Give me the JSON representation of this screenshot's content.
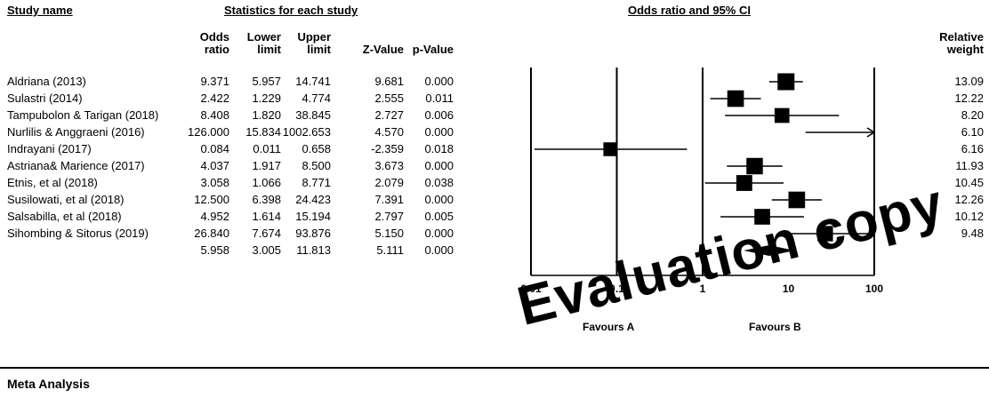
{
  "headers": {
    "study_name": "Study name",
    "statistics": "Statistics for each study",
    "plot_title": "Odds ratio and 95% CI",
    "relative_weight": [
      "Relative",
      "weight"
    ]
  },
  "columns": {
    "odds": [
      "Odds",
      "ratio"
    ],
    "lower": [
      "Lower",
      "limit"
    ],
    "upper": [
      "Upper",
      "limit"
    ],
    "z": "Z-Value",
    "p": "p-Value"
  },
  "chart_data": {
    "type": "forest",
    "x_scale": "log",
    "xlim": [
      0.01,
      100
    ],
    "ticks": [
      "0.01",
      "0.1",
      "1",
      "10",
      "100"
    ],
    "favours_left": "Favours A",
    "favours_right": "Favours B",
    "studies": [
      {
        "name": "Aldriana (2013)",
        "odds": "9.371",
        "lower": "5.957",
        "upper": "14.741",
        "z": "9.681",
        "p": "0.000",
        "weight": "13.09",
        "or": 9.371,
        "lo": 5.957,
        "hi": 14.741
      },
      {
        "name": "Sulastri (2014)",
        "odds": "2.422",
        "lower": "1.229",
        "upper": "4.774",
        "z": "2.555",
        "p": "0.011",
        "weight": "12.22",
        "or": 2.422,
        "lo": 1.229,
        "hi": 4.774
      },
      {
        "name": "Tampubolon & Tarigan (2018)",
        "odds": "8.408",
        "lower": "1.820",
        "upper": "38.845",
        "z": "2.727",
        "p": "0.006",
        "weight": "8.20",
        "or": 8.408,
        "lo": 1.82,
        "hi": 38.845
      },
      {
        "name": "Nurlilis & Anggraeni (2016)",
        "odds": "126.000",
        "lower": "15.834",
        "upper": "1002.653",
        "z": "4.570",
        "p": "0.000",
        "weight": "6.10",
        "or": 126.0,
        "lo": 15.834,
        "hi": 1002.653
      },
      {
        "name": "Indrayani (2017)",
        "odds": "0.084",
        "lower": "0.011",
        "upper": "0.658",
        "z": "-2.359",
        "p": "0.018",
        "weight": "6.16",
        "or": 0.084,
        "lo": 0.011,
        "hi": 0.658
      },
      {
        "name": "Astriana& Marience (2017)",
        "odds": "4.037",
        "lower": "1.917",
        "upper": "8.500",
        "z": "3.673",
        "p": "0.000",
        "weight": "11.93",
        "or": 4.037,
        "lo": 1.917,
        "hi": 8.5
      },
      {
        "name": "Etnis, et al (2018)",
        "odds": "3.058",
        "lower": "1.066",
        "upper": "8.771",
        "z": "2.079",
        "p": "0.038",
        "weight": "10.45",
        "or": 3.058,
        "lo": 1.066,
        "hi": 8.771
      },
      {
        "name": "Susilowati, et al (2018)",
        "odds": "12.500",
        "lower": "6.398",
        "upper": "24.423",
        "z": "7.391",
        "p": "0.000",
        "weight": "12.26",
        "or": 12.5,
        "lo": 6.398,
        "hi": 24.423
      },
      {
        "name": "Salsabilla, et al (2018)",
        "odds": "4.952",
        "lower": "1.614",
        "upper": "15.194",
        "z": "2.797",
        "p": "0.005",
        "weight": "10.12",
        "or": 4.952,
        "lo": 1.614,
        "hi": 15.194
      },
      {
        "name": "Sihombing & Sitorus (2019)",
        "odds": "26.840",
        "lower": "7.674",
        "upper": "93.876",
        "z": "5.150",
        "p": "0.000",
        "weight": "9.48",
        "or": 26.84,
        "lo": 7.674,
        "hi": 93.876
      }
    ],
    "summary": {
      "odds": "5.958",
      "lower": "3.005",
      "upper": "11.813",
      "z": "5.111",
      "p": "0.000",
      "or": 5.958,
      "lo": 3.005,
      "hi": 11.813
    }
  },
  "watermark": "Evaluation copy",
  "footer": {
    "title": "Meta Analysis"
  }
}
